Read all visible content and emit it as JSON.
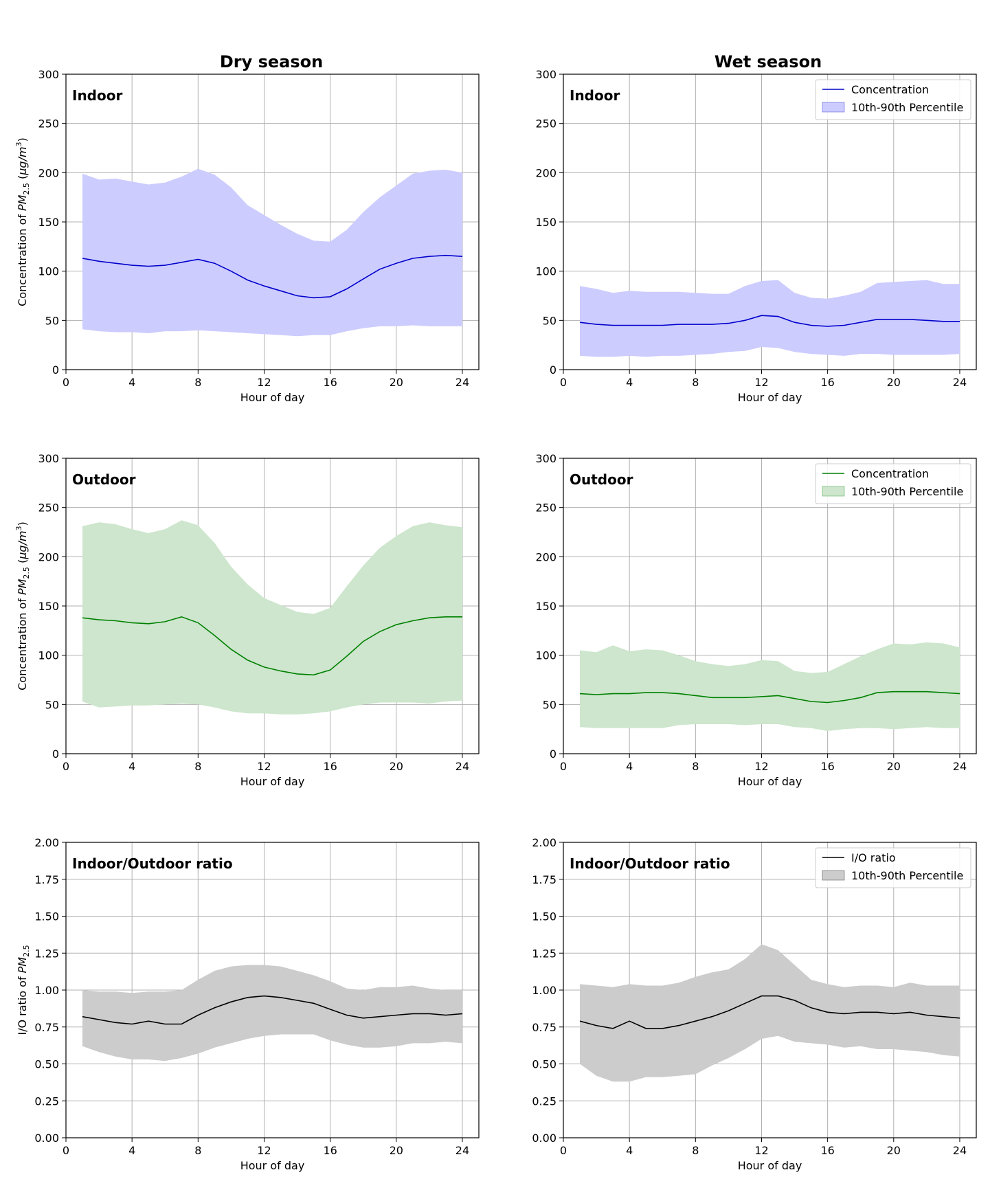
{
  "figure": {
    "column_titles": [
      "Dry season",
      "Wet season"
    ]
  },
  "chart_data": [
    {
      "type": "line",
      "panel_label": "Indoor",
      "column": "Dry season",
      "xlabel": "Hour of day",
      "ylabel": "Concentration of PM2.5 (μg/m3)",
      "xlim": [
        0,
        25
      ],
      "ylim": [
        0,
        300
      ],
      "xticks": [
        0,
        4,
        8,
        12,
        16,
        20,
        24
      ],
      "yticks": [
        0,
        50,
        100,
        150,
        200,
        250,
        300
      ],
      "ytick_labels": [
        "0",
        "50",
        "100",
        "150",
        "200",
        "250",
        "300"
      ],
      "grid": true,
      "color": "#0000cc",
      "band_color": "#ccccff",
      "x": [
        1,
        2,
        3,
        4,
        5,
        6,
        7,
        8,
        9,
        10,
        11,
        12,
        13,
        14,
        15,
        16,
        17,
        18,
        19,
        20,
        21,
        22,
        23,
        24
      ],
      "series": [
        {
          "name": "Concentration",
          "values": [
            113,
            110,
            108,
            106,
            105,
            106,
            109,
            112,
            108,
            100,
            91,
            85,
            80,
            75,
            73,
            74,
            82,
            92,
            102,
            108,
            113,
            115,
            116,
            115
          ]
        },
        {
          "name": "10th-90th Percentile",
          "lower": [
            41,
            39,
            38,
            38,
            37,
            39,
            39,
            40,
            39,
            38,
            37,
            36,
            35,
            34,
            35,
            35,
            39,
            42,
            44,
            44,
            45,
            44,
            44,
            44
          ],
          "upper": [
            199,
            193,
            194,
            191,
            188,
            190,
            196,
            204,
            198,
            185,
            167,
            157,
            147,
            138,
            131,
            130,
            142,
            160,
            175,
            187,
            199,
            202,
            203,
            200
          ]
        }
      ]
    },
    {
      "type": "line",
      "panel_label": "Indoor",
      "column": "Wet season",
      "xlabel": "Hour of day",
      "ylabel": "",
      "xlim": [
        0,
        25
      ],
      "ylim": [
        0,
        300
      ],
      "xticks": [
        0,
        4,
        8,
        12,
        16,
        20,
        24
      ],
      "yticks": [
        0,
        50,
        100,
        150,
        200,
        250,
        300
      ],
      "ytick_labels": [
        "0",
        "50",
        "100",
        "150",
        "200",
        "250",
        "300"
      ],
      "grid": true,
      "color": "#0000cc",
      "band_color": "#ccccff",
      "legend": {
        "placement": "top-right",
        "entries": [
          "Concentration",
          "10th-90th Percentile"
        ]
      },
      "x": [
        1,
        2,
        3,
        4,
        5,
        6,
        7,
        8,
        9,
        10,
        11,
        12,
        13,
        14,
        15,
        16,
        17,
        18,
        19,
        20,
        21,
        22,
        23,
        24
      ],
      "series": [
        {
          "name": "Concentration",
          "values": [
            48,
            46,
            45,
            45,
            45,
            45,
            46,
            46,
            46,
            47,
            50,
            55,
            54,
            48,
            45,
            44,
            45,
            48,
            51,
            51,
            51,
            50,
            49,
            49
          ]
        },
        {
          "name": "10th-90th Percentile",
          "lower": [
            14,
            13,
            13,
            14,
            13,
            14,
            14,
            15,
            16,
            18,
            19,
            23,
            22,
            18,
            16,
            15,
            14,
            16,
            16,
            15,
            15,
            15,
            15,
            16
          ],
          "upper": [
            85,
            82,
            78,
            80,
            79,
            79,
            79,
            78,
            77,
            77,
            85,
            90,
            91,
            78,
            73,
            72,
            75,
            79,
            88,
            89,
            90,
            91,
            87,
            87
          ]
        }
      ]
    },
    {
      "type": "line",
      "panel_label": "Outdoor",
      "column": "Dry season",
      "xlabel": "Hour of day",
      "ylabel": "Concentration of PM2.5 (μg/m3)",
      "xlim": [
        0,
        25
      ],
      "ylim": [
        0,
        300
      ],
      "xticks": [
        0,
        4,
        8,
        12,
        16,
        20,
        24
      ],
      "yticks": [
        0,
        50,
        100,
        150,
        200,
        250,
        300
      ],
      "ytick_labels": [
        "0",
        "50",
        "100",
        "150",
        "200",
        "250",
        "300"
      ],
      "grid": true,
      "color": "#008000",
      "band_color": "#cde6cd",
      "x": [
        1,
        2,
        3,
        4,
        5,
        6,
        7,
        8,
        9,
        10,
        11,
        12,
        13,
        14,
        15,
        16,
        17,
        18,
        19,
        20,
        21,
        22,
        23,
        24
      ],
      "series": [
        {
          "name": "Concentration",
          "values": [
            138,
            136,
            135,
            133,
            132,
            134,
            139,
            133,
            120,
            106,
            95,
            88,
            84,
            81,
            80,
            85,
            99,
            114,
            124,
            131,
            135,
            138,
            139,
            139
          ]
        },
        {
          "name": "10th-90th Percentile",
          "lower": [
            53,
            47,
            48,
            49,
            49,
            50,
            51,
            50,
            47,
            43,
            41,
            41,
            40,
            40,
            41,
            43,
            47,
            50,
            52,
            52,
            52,
            51,
            53,
            54
          ],
          "upper": [
            231,
            235,
            233,
            228,
            224,
            228,
            237,
            232,
            214,
            190,
            172,
            158,
            151,
            144,
            142,
            148,
            170,
            191,
            209,
            221,
            231,
            235,
            232,
            230
          ]
        }
      ]
    },
    {
      "type": "line",
      "panel_label": "Outdoor",
      "column": "Wet season",
      "xlabel": "Hour of day",
      "ylabel": "",
      "xlim": [
        0,
        25
      ],
      "ylim": [
        0,
        300
      ],
      "xticks": [
        0,
        4,
        8,
        12,
        16,
        20,
        24
      ],
      "yticks": [
        0,
        50,
        100,
        150,
        200,
        250,
        300
      ],
      "ytick_labels": [
        "0",
        "50",
        "100",
        "150",
        "200",
        "250",
        "300"
      ],
      "grid": true,
      "color": "#008000",
      "band_color": "#cde6cd",
      "legend": {
        "placement": "top-right",
        "entries": [
          "Concentration",
          "10th-90th Percentile"
        ]
      },
      "x": [
        1,
        2,
        3,
        4,
        5,
        6,
        7,
        8,
        9,
        10,
        11,
        12,
        13,
        14,
        15,
        16,
        17,
        18,
        19,
        20,
        21,
        22,
        23,
        24
      ],
      "series": [
        {
          "name": "Concentration",
          "values": [
            61,
            60,
            61,
            61,
            62,
            62,
            61,
            59,
            57,
            57,
            57,
            58,
            59,
            56,
            53,
            52,
            54,
            57,
            62,
            63,
            63,
            63,
            62,
            61
          ]
        },
        {
          "name": "10th-90th Percentile",
          "lower": [
            27,
            26,
            26,
            26,
            26,
            26,
            29,
            30,
            30,
            30,
            29,
            30,
            30,
            27,
            26,
            23,
            25,
            26,
            26,
            25,
            26,
            27,
            26,
            26
          ],
          "upper": [
            105,
            103,
            110,
            104,
            106,
            105,
            100,
            94,
            91,
            89,
            91,
            95,
            94,
            84,
            82,
            83,
            91,
            99,
            106,
            112,
            111,
            113,
            112,
            108
          ]
        }
      ]
    },
    {
      "type": "line",
      "panel_label": "Indoor/Outdoor ratio",
      "column": "Dry season",
      "xlabel": "Hour of day",
      "ylabel": "I/O ratio of PM2.5",
      "xlim": [
        0,
        25
      ],
      "ylim": [
        0,
        2
      ],
      "xticks": [
        0,
        4,
        8,
        12,
        16,
        20,
        24
      ],
      "yticks": [
        0,
        0.25,
        0.5,
        0.75,
        1.0,
        1.25,
        1.5,
        1.75,
        2.0
      ],
      "ytick_labels": [
        "0.00",
        "0.25",
        "0.50",
        "0.75",
        "1.00",
        "1.25",
        "1.50",
        "1.75",
        "2.00"
      ],
      "grid": true,
      "color": "#000000",
      "band_color": "#cccccc",
      "x": [
        1,
        2,
        3,
        4,
        5,
        6,
        7,
        8,
        9,
        10,
        11,
        12,
        13,
        14,
        15,
        16,
        17,
        18,
        19,
        20,
        21,
        22,
        23,
        24
      ],
      "series": [
        {
          "name": "I/O ratio",
          "values": [
            0.82,
            0.8,
            0.78,
            0.77,
            0.79,
            0.77,
            0.77,
            0.83,
            0.88,
            0.92,
            0.95,
            0.96,
            0.95,
            0.93,
            0.91,
            0.87,
            0.83,
            0.81,
            0.82,
            0.83,
            0.84,
            0.84,
            0.83,
            0.84
          ]
        },
        {
          "name": "10th-90th Percentile",
          "lower": [
            0.62,
            0.58,
            0.55,
            0.53,
            0.53,
            0.52,
            0.54,
            0.57,
            0.61,
            0.64,
            0.67,
            0.69,
            0.7,
            0.7,
            0.7,
            0.66,
            0.63,
            0.61,
            0.61,
            0.62,
            0.64,
            0.64,
            0.65,
            0.64
          ],
          "upper": [
            1.0,
            0.99,
            0.99,
            0.98,
            0.99,
            0.99,
            1.0,
            1.07,
            1.13,
            1.16,
            1.17,
            1.17,
            1.16,
            1.13,
            1.1,
            1.06,
            1.01,
            1.0,
            1.02,
            1.02,
            1.03,
            1.01,
            1.0,
            1.0
          ]
        }
      ]
    },
    {
      "type": "line",
      "panel_label": "Indoor/Outdoor ratio",
      "column": "Wet season",
      "xlabel": "Hour of day",
      "ylabel": "",
      "xlim": [
        0,
        25
      ],
      "ylim": [
        0,
        2
      ],
      "xticks": [
        0,
        4,
        8,
        12,
        16,
        20,
        24
      ],
      "yticks": [
        0,
        0.25,
        0.5,
        0.75,
        1.0,
        1.25,
        1.5,
        1.75,
        2.0
      ],
      "ytick_labels": [
        "0.00",
        "0.25",
        "0.50",
        "0.75",
        "1.00",
        "1.25",
        "1.50",
        "1.75",
        "2.00"
      ],
      "grid": true,
      "color": "#000000",
      "band_color": "#cccccc",
      "legend": {
        "placement": "top-right",
        "entries": [
          "I/O ratio",
          "10th-90th Percentile"
        ]
      },
      "x": [
        1,
        2,
        3,
        4,
        5,
        6,
        7,
        8,
        9,
        10,
        11,
        12,
        13,
        14,
        15,
        16,
        17,
        18,
        19,
        20,
        21,
        22,
        23,
        24
      ],
      "series": [
        {
          "name": "I/O ratio",
          "values": [
            0.79,
            0.76,
            0.74,
            0.79,
            0.74,
            0.74,
            0.76,
            0.79,
            0.82,
            0.86,
            0.91,
            0.96,
            0.96,
            0.93,
            0.88,
            0.85,
            0.84,
            0.85,
            0.85,
            0.84,
            0.85,
            0.83,
            0.82,
            0.81
          ]
        },
        {
          "name": "10th-90th Percentile",
          "lower": [
            0.5,
            0.42,
            0.38,
            0.38,
            0.41,
            0.41,
            0.42,
            0.43,
            0.49,
            0.54,
            0.6,
            0.67,
            0.69,
            0.65,
            0.64,
            0.63,
            0.61,
            0.62,
            0.6,
            0.6,
            0.59,
            0.58,
            0.56,
            0.55
          ],
          "upper": [
            1.04,
            1.03,
            1.02,
            1.04,
            1.03,
            1.03,
            1.05,
            1.09,
            1.12,
            1.14,
            1.21,
            1.31,
            1.27,
            1.17,
            1.07,
            1.04,
            1.02,
            1.03,
            1.03,
            1.02,
            1.05,
            1.03,
            1.03,
            1.03
          ]
        }
      ]
    }
  ]
}
